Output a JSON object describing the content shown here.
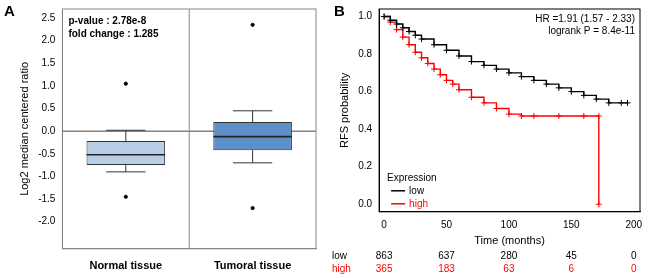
{
  "chart_data": [
    {
      "type": "box",
      "panel": "A",
      "annotations": [
        "p-value : 2.78e-8",
        "fold change : 1.285"
      ],
      "ylabel": "Log2 median centered ratio",
      "categories": [
        "Normal tissue",
        "Tumoral tissue"
      ],
      "boxes": [
        {
          "whisker_low": -0.9,
          "q1": -0.75,
          "median": -0.52,
          "q3": -0.22,
          "whisker_high": 0.02,
          "outliers": [
            1.05,
            -1.45
          ]
        },
        {
          "whisker_low": -0.7,
          "q1": -0.42,
          "median": -0.12,
          "q3": 0.2,
          "whisker_high": 0.45,
          "outliers": [
            2.35,
            -1.7
          ]
        }
      ],
      "colors": [
        "#b8cde6",
        "#5d8fc9"
      ],
      "ylim": [
        -2.6,
        2.7
      ],
      "yticks": [
        2.5,
        {
          "value": 2,
          "label": "2.0"
        },
        1.5,
        {
          "value": 1,
          "label": "1.0"
        },
        0.5,
        {
          "value": 0,
          "label": "0.0"
        },
        -0.5,
        {
          "value": -1,
          "label": "-1.0"
        },
        -1.5,
        {
          "value": -2,
          "label": "-2.0"
        }
      ],
      "reference_line": 0,
      "grid": false
    },
    {
      "type": "line",
      "panel": "B",
      "annotations": [
        "HR =1.91 (1.57 - 2.33)",
        "logrank P = 8.4e-11"
      ],
      "xlabel": "Time (months)",
      "ylabel": "RFS probability",
      "xlim": [
        -4,
        205
      ],
      "xticks": [
        0,
        50,
        100,
        150,
        200
      ],
      "ylim": [
        -0.04,
        1.04
      ],
      "yticks": [
        {
          "value": 0,
          "label": "0.0"
        },
        0.2,
        0.4,
        0.6,
        0.8,
        {
          "value": 1,
          "label": "1.0"
        }
      ],
      "legend": "lower left",
      "legend_title": "Expression",
      "grid": false,
      "at_risk_times": [
        0,
        50,
        100,
        150,
        200
      ],
      "series": [
        {
          "name": "low",
          "color": "#000000",
          "marker": "cross",
          "line_style": "stepped",
          "x": [
            0,
            5,
            10,
            15,
            20,
            25,
            30,
            40,
            50,
            60,
            70,
            80,
            90,
            100,
            110,
            120,
            130,
            140,
            150,
            160,
            170,
            180,
            190,
            195
          ],
          "values": [
            1.0,
            0.98,
            0.96,
            0.94,
            0.92,
            0.9,
            0.88,
            0.85,
            0.82,
            0.79,
            0.76,
            0.74,
            0.72,
            0.7,
            0.68,
            0.66,
            0.64,
            0.62,
            0.6,
            0.58,
            0.56,
            0.54,
            0.54,
            0.54
          ],
          "at_risk": [
            863,
            637,
            280,
            45,
            0
          ]
        },
        {
          "name": "high",
          "color": "#ff0000",
          "marker": "cross",
          "line_style": "stepped",
          "x": [
            0,
            5,
            10,
            15,
            20,
            25,
            30,
            35,
            40,
            45,
            50,
            55,
            60,
            70,
            80,
            90,
            100,
            110,
            120,
            140,
            160,
            172,
            172
          ],
          "values": [
            1.0,
            0.97,
            0.93,
            0.89,
            0.85,
            0.81,
            0.78,
            0.75,
            0.72,
            0.69,
            0.66,
            0.64,
            0.61,
            0.57,
            0.54,
            0.51,
            0.48,
            0.47,
            0.47,
            0.47,
            0.47,
            0.47,
            0.0
          ],
          "at_risk": [
            365,
            183,
            63,
            6,
            0
          ]
        }
      ]
    }
  ]
}
